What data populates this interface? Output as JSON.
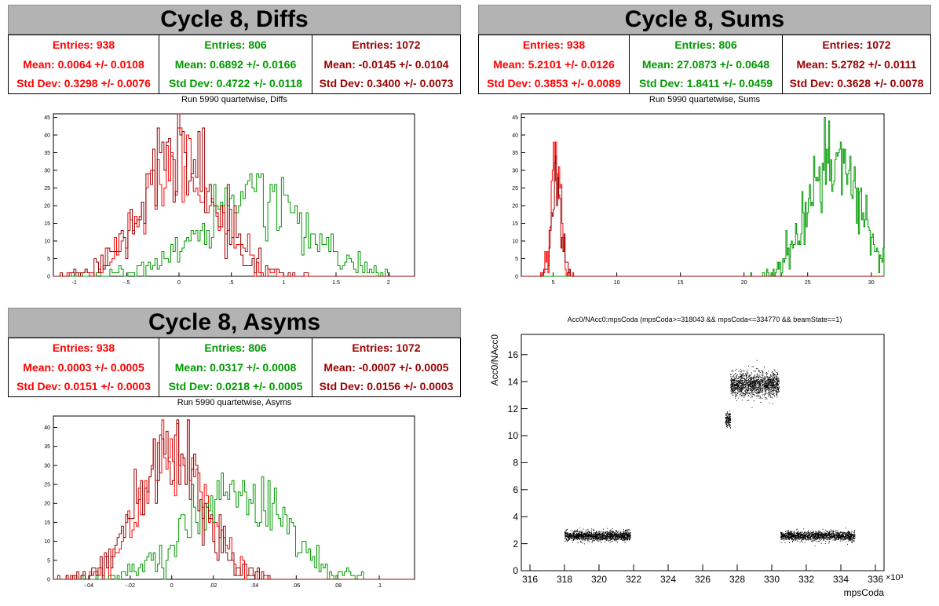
{
  "colors": {
    "red": "#ff0000",
    "green": "#009900",
    "darkred": "#990000",
    "black": "#000000"
  },
  "panels": {
    "diffs": {
      "heading": "Cycle 8, Diffs",
      "stats": [
        {
          "entries": "Entries: 938",
          "mean": "Mean: 0.0064 +/- 0.0108",
          "std": "Std Dev: 0.3298 +/- 0.0076",
          "color": "#ff0000"
        },
        {
          "entries": "Entries: 806",
          "mean": "Mean: 0.6892 +/- 0.0166",
          "std": "Std Dev: 0.4722 +/- 0.0118",
          "color": "#009900"
        },
        {
          "entries": "Entries: 1072",
          "mean": "Mean: -0.0145 +/- 0.0104",
          "std": "Std Dev: 0.3400 +/- 0.0073",
          "color": "#990000"
        }
      ],
      "subtitle": "Run 5990 quartetwise, Diffs"
    },
    "sums": {
      "heading": "Cycle 8, Sums",
      "stats": [
        {
          "entries": "Entries: 938",
          "mean": "Mean: 5.2101 +/- 0.0126",
          "std": "Std Dev: 0.3853 +/- 0.0089",
          "color": "#ff0000"
        },
        {
          "entries": "Entries: 806",
          "mean": "Mean: 27.0873 +/- 0.0648",
          "std": "Std Dev: 1.8411 +/- 0.0459",
          "color": "#009900"
        },
        {
          "entries": "Entries: 1072",
          "mean": "Mean: 5.2782 +/- 0.0111",
          "std": "Std Dev: 0.3628 +/- 0.0078",
          "color": "#990000"
        }
      ],
      "subtitle": "Run 5990 quartetwise, Sums"
    },
    "asyms": {
      "heading": "Cycle 8, Asyms",
      "stats": [
        {
          "entries": "Entries: 938",
          "mean": "Mean: 0.0003 +/- 0.0005",
          "std": "Std Dev: 0.0151 +/- 0.0003",
          "color": "#ff0000"
        },
        {
          "entries": "Entries: 806",
          "mean": "Mean: 0.0317 +/- 0.0008",
          "std": "Std Dev: 0.0218 +/- 0.0005",
          "color": "#009900"
        },
        {
          "entries": "Entries: 1072",
          "mean": "Mean: -0.0007 +/- 0.0005",
          "std": "Std Dev: 0.0156 +/- 0.0003",
          "color": "#990000"
        }
      ],
      "subtitle": "Run 5990 quartetwise, Asyms"
    },
    "scatter": {
      "subtitle": "Acc0/NAcc0:mpsCoda (mpsCoda>=318043 && mpsCoda<=334770 && beamState==1)"
    }
  },
  "chart_data": [
    {
      "id": "diffs",
      "type": "bar",
      "title": "Run 5990 quartetwise, Diffs",
      "xlabel": "",
      "ylabel": "",
      "xlim": [
        -1.2,
        2.25
      ],
      "ylim": [
        0,
        46
      ],
      "xticks": [
        -1,
        -0.5,
        0,
        0.5,
        1,
        1.5,
        2
      ],
      "yticks": [
        0,
        5,
        10,
        15,
        20,
        25,
        30,
        35,
        40,
        45
      ],
      "series": [
        {
          "color": "#ff0000",
          "mean": 0.0064,
          "std": 0.3298,
          "entries": 938,
          "peak": 42
        },
        {
          "color": "#009900",
          "mean": 0.6892,
          "std": 0.4722,
          "entries": 806,
          "peak": 29
        },
        {
          "color": "#990000",
          "mean": -0.0145,
          "std": 0.34,
          "entries": 1072,
          "peak": 46
        }
      ]
    },
    {
      "id": "sums",
      "type": "bar",
      "title": "Run 5990 quartetwise, Sums",
      "xlabel": "",
      "ylabel": "",
      "xlim": [
        2.5,
        31
      ],
      "ylim": [
        0,
        46
      ],
      "xticks": [
        5,
        10,
        15,
        20,
        25,
        30
      ],
      "yticks": [
        0,
        5,
        10,
        15,
        20,
        25,
        30,
        35,
        40,
        45
      ],
      "series": [
        {
          "color": "#ff0000",
          "mean": 5.2101,
          "std": 0.3853,
          "entries": 938,
          "peak": 38
        },
        {
          "color": "#009900",
          "mean": 27.0873,
          "std": 1.8411,
          "entries": 806,
          "peak": 45
        },
        {
          "color": "#990000",
          "mean": 5.2782,
          "std": 0.3628,
          "entries": 1072,
          "peak": 38
        }
      ]
    },
    {
      "id": "asyms",
      "type": "bar",
      "title": "Run 5990 quartetwise, Asyms",
      "xlabel": "",
      "ylabel": "",
      "xlim": [
        -0.057,
        0.117
      ],
      "ylim": [
        0,
        43
      ],
      "xticks": [
        -0.04,
        -0.02,
        0,
        0.02,
        0.04,
        0.06,
        0.08,
        0.1
      ],
      "yticks": [
        0,
        5,
        10,
        15,
        20,
        25,
        30,
        35,
        40
      ],
      "series": [
        {
          "color": "#ff0000",
          "mean": 0.0003,
          "std": 0.0151,
          "entries": 938,
          "peak": 42
        },
        {
          "color": "#009900",
          "mean": 0.0317,
          "std": 0.0218,
          "entries": 806,
          "peak": 29
        },
        {
          "color": "#990000",
          "mean": -0.0007,
          "std": 0.0156,
          "entries": 1072,
          "peak": 42
        }
      ]
    },
    {
      "id": "scatter",
      "type": "scatter",
      "title": "Acc0/NAcc0:mpsCoda (mpsCoda>=318043 && mpsCoda<=334770 && beamState==1)",
      "xlabel": "mpsCoda",
      "ylabel": "Acc0/NAcc0",
      "x_exponent": "×10³",
      "xlim": [
        315.5,
        336.5
      ],
      "ylim": [
        0,
        17.5
      ],
      "xticks": [
        316,
        318,
        320,
        322,
        324,
        326,
        328,
        330,
        332,
        334,
        336
      ],
      "yticks": [
        0,
        2,
        4,
        6,
        8,
        10,
        12,
        14,
        16
      ],
      "clusters": [
        {
          "x_range": [
            318.0,
            321.8
          ],
          "y_center": 2.6,
          "y_spread": 0.35
        },
        {
          "x_range": [
            327.3,
            327.6
          ],
          "y_center": 11.2,
          "y_spread": 0.6
        },
        {
          "x_range": [
            327.6,
            330.4
          ],
          "y_center": 13.8,
          "y_spread": 0.9
        },
        {
          "x_range": [
            330.5,
            334.8
          ],
          "y_center": 2.6,
          "y_spread": 0.35
        }
      ]
    }
  ]
}
